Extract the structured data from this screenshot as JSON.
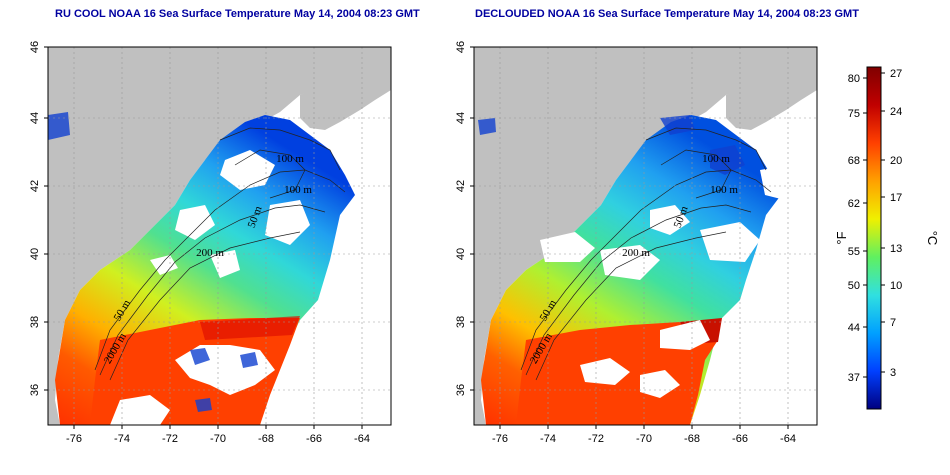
{
  "panels": [
    {
      "id": "left",
      "title": "RU COOL NOAA 16 Sea Surface Temperature May 14, 2004 08:23 GMT",
      "contour_labels": [
        "100 m",
        "100 m",
        "50 m",
        "200 m",
        "50 m",
        "2000 m"
      ]
    },
    {
      "id": "right",
      "title": "DECLOUDED NOAA 16 Sea Surface Temperature May 14, 2004 08:23 GMT",
      "contour_labels": [
        "100 m",
        "100 m",
        "50 m",
        "200 m",
        "50 m",
        "2000 m"
      ]
    }
  ],
  "axes": {
    "lon_ticks": [
      "-76",
      "-74",
      "-72",
      "-70",
      "-68",
      "-66",
      "-64"
    ],
    "lat_ticks": [
      "36",
      "38",
      "40",
      "42",
      "44",
      "46"
    ]
  },
  "colorbar": {
    "fahrenheit_ticks": [
      "80",
      "75",
      "68",
      "62",
      "55",
      "50",
      "44",
      "37"
    ],
    "celsius_ticks": [
      "27",
      "24",
      "20",
      "17",
      "13",
      "10",
      "7",
      "3"
    ],
    "fahrenheit_unit": "°F",
    "celsius_unit": "°C"
  },
  "colors": {
    "land": "#c0c0c0",
    "cloud": "#ffffff",
    "title": "#0000a0",
    "scale": [
      "#000080",
      "#0040ff",
      "#00a0ff",
      "#30e0e0",
      "#60f060",
      "#f0f000",
      "#ffa000",
      "#ff4000",
      "#c00000",
      "#800000"
    ]
  }
}
